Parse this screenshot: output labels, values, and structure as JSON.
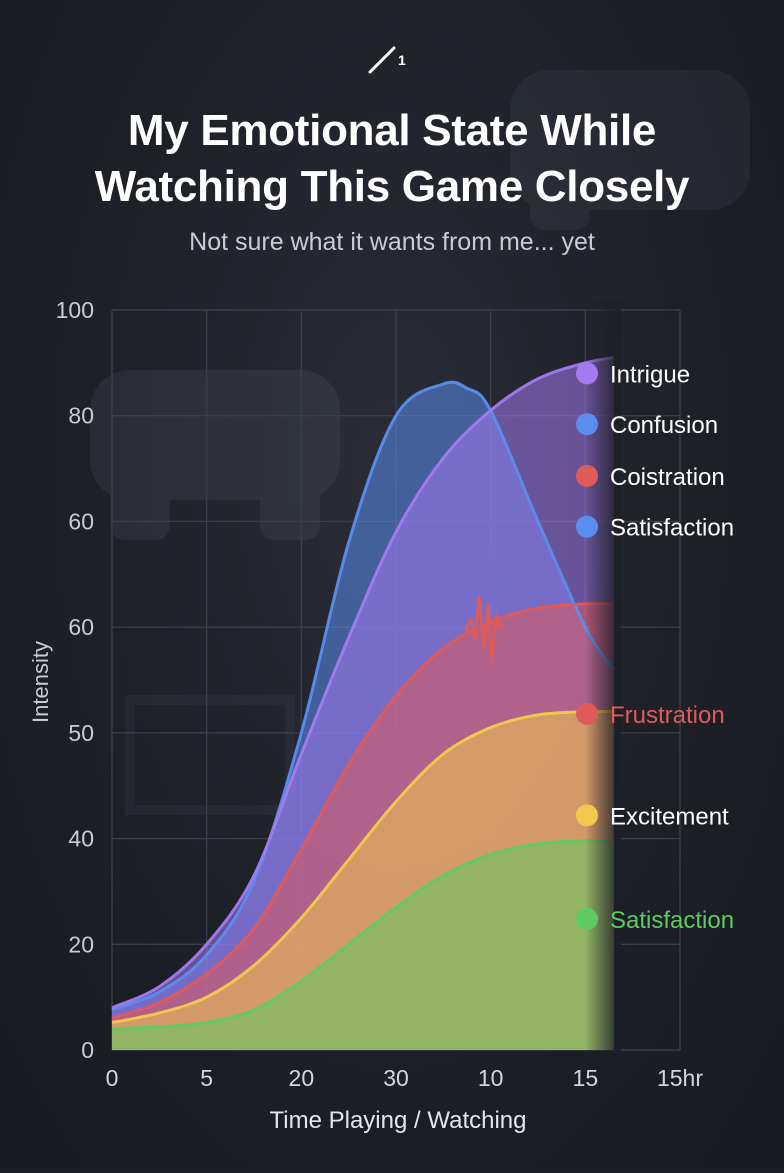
{
  "header": {
    "logo_text": "1",
    "title_line1": "My Emotional State While",
    "title_line2": "Watching This Game Closely",
    "subtitle": "Not sure what it wants from me... yet"
  },
  "chart_data": {
    "type": "area",
    "title": "My Emotional State While Watching This Game Closely",
    "subtitle": "Not sure what it wants from me... yet",
    "xlabel": "Time Playing / Watching",
    "ylabel": "Intensity",
    "x_tick_labels": [
      "0",
      "5",
      "20",
      "30",
      "10",
      "15",
      "15hr"
    ],
    "y_tick_labels": [
      "0",
      "20",
      "40",
      "50",
      "60",
      "60",
      "80",
      "100"
    ],
    "x_range": [
      0,
      6
    ],
    "y_range": [
      0,
      7
    ],
    "grid": true,
    "series": [
      {
        "name": "Confusion",
        "color": "#5b8def",
        "x": [
          0,
          0.5,
          1,
          1.5,
          2,
          2.5,
          3,
          3.5,
          3.75,
          4,
          4.5,
          5,
          5.3
        ],
        "y": [
          0.38,
          0.55,
          0.9,
          1.6,
          3.0,
          4.8,
          6.0,
          6.3,
          6.26,
          6.05,
          5.0,
          4.0,
          3.6
        ]
      },
      {
        "name": "Intrigue",
        "color": "#a47af0",
        "x": [
          0,
          0.5,
          1,
          1.5,
          2,
          2.5,
          3,
          3.5,
          4,
          4.5,
          5,
          5.3
        ],
        "y": [
          0.4,
          0.6,
          1.0,
          1.65,
          2.8,
          3.9,
          4.9,
          5.6,
          6.05,
          6.35,
          6.5,
          6.55
        ]
      },
      {
        "name": "Frustration",
        "color": "#e05a5a",
        "x": [
          0,
          0.5,
          1,
          1.5,
          2,
          2.5,
          3,
          3.5,
          4,
          4.5,
          5,
          5.3
        ],
        "y": [
          0.3,
          0.45,
          0.72,
          1.15,
          1.9,
          2.7,
          3.35,
          3.8,
          4.05,
          4.18,
          4.22,
          4.22
        ]
      },
      {
        "name": "Excitement",
        "color": "#f2c94c",
        "x": [
          0,
          0.5,
          1,
          1.5,
          2,
          2.5,
          3,
          3.5,
          4,
          4.5,
          5,
          5.3
        ],
        "y": [
          0.26,
          0.35,
          0.5,
          0.8,
          1.25,
          1.8,
          2.35,
          2.8,
          3.05,
          3.17,
          3.2,
          3.2
        ]
      },
      {
        "name": "Satisfaction",
        "color": "#5fca62",
        "x": [
          0,
          0.5,
          1,
          1.5,
          2,
          2.5,
          3,
          3.5,
          4,
          4.5,
          5,
          5.3
        ],
        "y": [
          0.2,
          0.22,
          0.26,
          0.38,
          0.65,
          1.0,
          1.35,
          1.65,
          1.85,
          1.95,
          1.98,
          1.98
        ]
      }
    ],
    "legend": [
      {
        "label": "Intrigue",
        "color": "#a47af0",
        "dot_color": "#a47af0",
        "text_color": "#ffffff",
        "level": 6.4
      },
      {
        "label": "Confusion",
        "color": "#5b8def",
        "dot_color": "#5b8def",
        "text_color": "#ffffff",
        "level": 5.92
      },
      {
        "label": "Coistration",
        "color": "#e05a5a",
        "dot_color": "#e05a5a",
        "text_color": "#ffffff",
        "level": 5.43
      },
      {
        "label": "Satisfaction",
        "color": "#5b8def",
        "dot_color": "#5b8def",
        "text_color": "#ffffff",
        "level": 4.95
      },
      {
        "label": "Frustration",
        "color": "#e05a5a",
        "dot_color": "#e05a5a",
        "text_color": "#e05a5a",
        "level": 3.18
      },
      {
        "label": "Excitement",
        "color": "#f2c94c",
        "dot_color": "#f2c94c",
        "text_color": "#ffffff",
        "level": 2.22
      },
      {
        "label": "Satisfaction",
        "color": "#5fca62",
        "dot_color": "#5fca62",
        "text_color": "#5fca62",
        "level": 1.24
      }
    ],
    "annotations": [
      {
        "type": "spike",
        "series": "Frustration",
        "x": 3.9
      }
    ]
  }
}
